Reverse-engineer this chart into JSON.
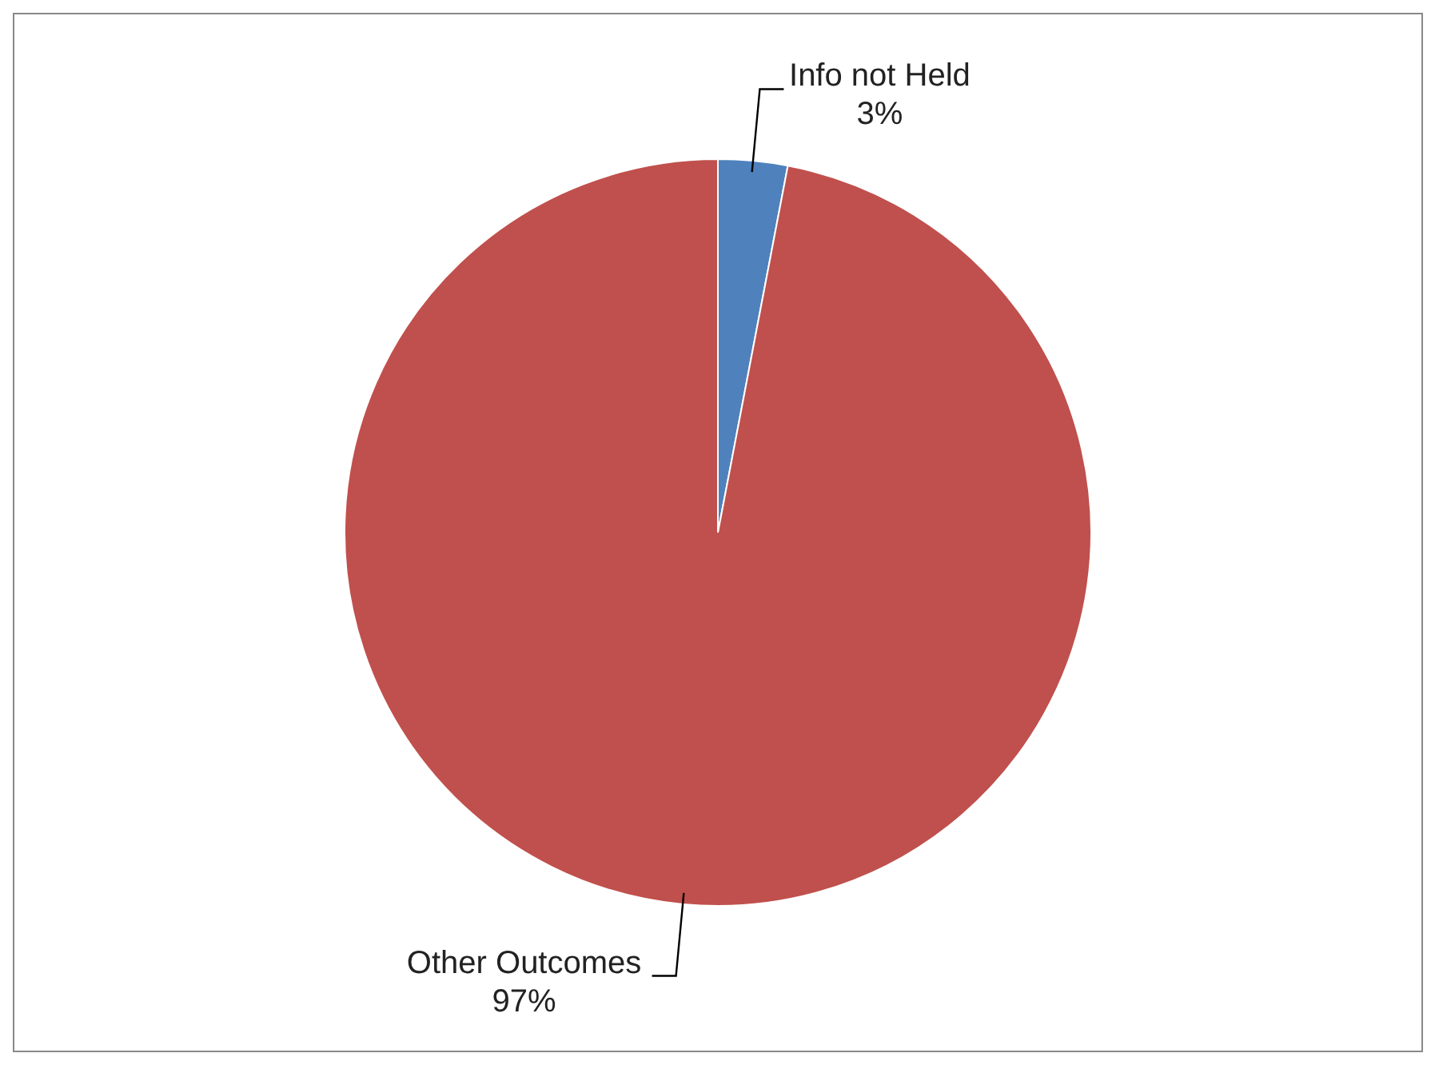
{
  "chart_data": {
    "type": "pie",
    "categories": [
      "Info not Held",
      "Other Outcomes"
    ],
    "values": [
      3,
      97
    ],
    "colors": [
      "#4f81bd",
      "#c0504d"
    ],
    "value_labels": [
      "3%",
      "97%"
    ],
    "legend": false
  }
}
